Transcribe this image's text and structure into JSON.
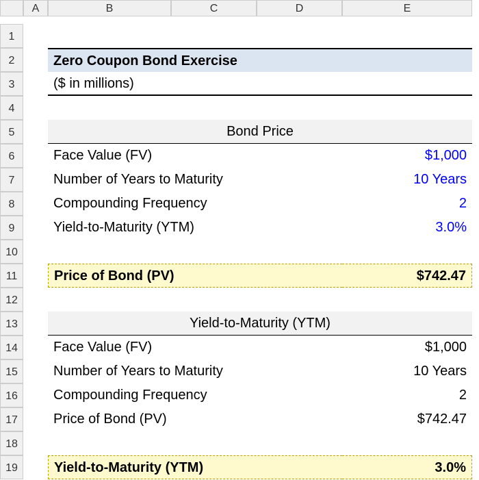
{
  "columns": [
    "A",
    "B",
    "C",
    "D",
    "E"
  ],
  "rows": [
    "1",
    "2",
    "3",
    "4",
    "5",
    "6",
    "7",
    "8",
    "9",
    "10",
    "11",
    "12",
    "13",
    "14",
    "15",
    "16",
    "17",
    "18",
    "19"
  ],
  "title": "Zero Coupon Bond Exercise",
  "subtitle": "($ in millions)",
  "section1": {
    "header": "Bond Price",
    "items": [
      {
        "label": "Face Value (FV)",
        "value": "$1,000",
        "color": "blue"
      },
      {
        "label": "Number of Years to Maturity",
        "value": "10 Years",
        "color": "blue"
      },
      {
        "label": "Compounding Frequency",
        "value": "2",
        "color": "blue"
      },
      {
        "label": "Yield-to-Maturity (YTM)",
        "value": "3.0%",
        "color": "blue"
      }
    ],
    "result": {
      "label": "Price of Bond (PV)",
      "value": "$742.47"
    }
  },
  "section2": {
    "header": "Yield-to-Maturity (YTM)",
    "items": [
      {
        "label": "Face Value (FV)",
        "value": "$1,000",
        "color": "black"
      },
      {
        "label": "Number of Years to Maturity",
        "value": "10 Years",
        "color": "black"
      },
      {
        "label": "Compounding Frequency",
        "value": "2",
        "color": "black"
      },
      {
        "label": "Price of Bond (PV)",
        "value": "$742.47",
        "color": "black"
      }
    ],
    "result": {
      "label": "Yield-to-Maturity (YTM)",
      "value": "3.0%"
    }
  },
  "colors": {
    "title_bg": "#dbe5f1",
    "section_bg": "#f2f2f2",
    "highlight_bg": "#fffacd",
    "blue_text": "#0000ff",
    "header_bg": "#f0f0f0",
    "border": "#cccccc"
  }
}
